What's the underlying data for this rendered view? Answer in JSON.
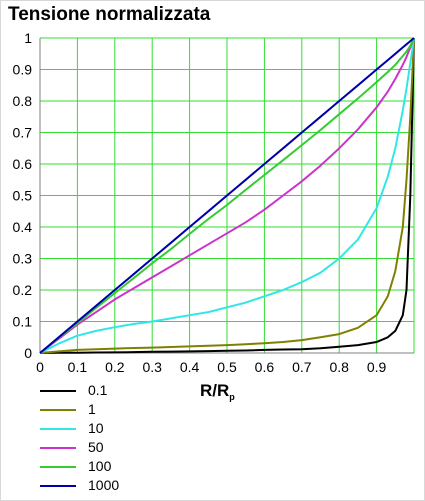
{
  "chart_data": {
    "type": "line",
    "title": "Tensione normalizzata",
    "xlabel_main": "R/R",
    "xlabel_sub": "p",
    "ylabel": "",
    "xlim": [
      0,
      1
    ],
    "ylim": [
      0,
      1
    ],
    "grid": true,
    "legend_placement": "below-left",
    "x_ticks": [
      "0",
      "0.1",
      "0.2",
      "0.3",
      "0.4",
      "0.5",
      "0.6",
      "0.7",
      "0.8",
      "0.9"
    ],
    "y_ticks": [
      "0",
      "0.1",
      "0.2",
      "0.3",
      "0.4",
      "0.5",
      "0.6",
      "0.7",
      "0.8",
      "0.9",
      "1"
    ],
    "x": [
      0,
      0.05,
      0.1,
      0.15,
      0.2,
      0.25,
      0.3,
      0.35,
      0.4,
      0.45,
      0.5,
      0.55,
      0.6,
      0.65,
      0.7,
      0.75,
      0.8,
      0.85,
      0.9,
      0.93,
      0.95,
      0.97,
      0.98,
      0.99,
      1.0
    ],
    "series": [
      {
        "name": "0.1",
        "color": "#000000",
        "values": [
          0,
          0.0005,
          0.001,
          0.0015,
          0.002,
          0.003,
          0.004,
          0.0045,
          0.005,
          0.006,
          0.007,
          0.008,
          0.01,
          0.011,
          0.012,
          0.015,
          0.02,
          0.025,
          0.035,
          0.05,
          0.07,
          0.12,
          0.2,
          0.5,
          1.0
        ]
      },
      {
        "name": "1",
        "color": "#808000",
        "values": [
          0,
          0.005,
          0.01,
          0.012,
          0.014,
          0.016,
          0.017,
          0.019,
          0.021,
          0.023,
          0.025,
          0.028,
          0.031,
          0.035,
          0.041,
          0.05,
          0.06,
          0.08,
          0.12,
          0.18,
          0.26,
          0.4,
          0.55,
          0.75,
          1.0
        ]
      },
      {
        "name": "10",
        "color": "#33e6e6",
        "values": [
          0,
          0.03,
          0.055,
          0.07,
          0.082,
          0.092,
          0.1,
          0.11,
          0.12,
          0.13,
          0.145,
          0.16,
          0.18,
          0.2,
          0.225,
          0.255,
          0.3,
          0.36,
          0.46,
          0.56,
          0.65,
          0.77,
          0.84,
          0.92,
          1.0
        ]
      },
      {
        "name": "50",
        "color": "#cc33cc",
        "values": [
          0,
          0.045,
          0.09,
          0.13,
          0.17,
          0.205,
          0.24,
          0.275,
          0.31,
          0.345,
          0.38,
          0.415,
          0.455,
          0.5,
          0.545,
          0.595,
          0.65,
          0.71,
          0.78,
          0.83,
          0.87,
          0.915,
          0.94,
          0.97,
          1.0
        ]
      },
      {
        "name": "100",
        "color": "#33cc33",
        "values": [
          0,
          0.048,
          0.095,
          0.143,
          0.19,
          0.237,
          0.285,
          0.33,
          0.378,
          0.425,
          0.47,
          0.518,
          0.565,
          0.612,
          0.66,
          0.708,
          0.758,
          0.808,
          0.86,
          0.892,
          0.915,
          0.943,
          0.957,
          0.975,
          1.0
        ]
      },
      {
        "name": "1000",
        "color": "#0000aa",
        "values": [
          0,
          0.05,
          0.1,
          0.15,
          0.2,
          0.25,
          0.3,
          0.35,
          0.4,
          0.45,
          0.5,
          0.55,
          0.6,
          0.65,
          0.7,
          0.75,
          0.8,
          0.85,
          0.9,
          0.93,
          0.95,
          0.97,
          0.98,
          0.99,
          1.0
        ]
      }
    ]
  }
}
